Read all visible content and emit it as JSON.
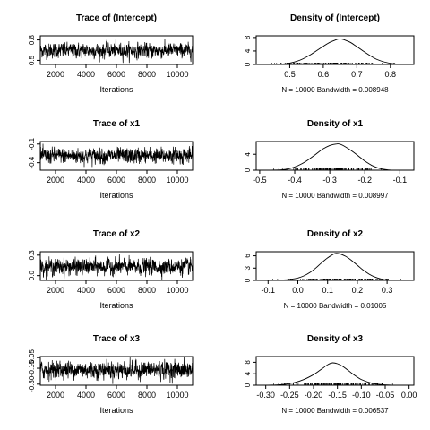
{
  "figure": {
    "rows": [
      {
        "trace": {
          "title": "Trace of (Intercept)",
          "xlabel": "Iterations",
          "xlim": [
            1000,
            11000
          ],
          "ylim": [
            0.44,
            0.86
          ],
          "xticks": [
            2000,
            4000,
            6000,
            8000,
            10000
          ],
          "yticks": [
            "0.5",
            "0.8"
          ],
          "ytick_values": [
            0.5,
            0.8
          ]
        },
        "density": {
          "title": "Density of (Intercept)",
          "caption": "N = 10000   Bandwidth = 0.008948",
          "xlim": [
            0.4,
            0.87
          ],
          "ylim": [
            0,
            8.5
          ],
          "xticks": [
            "0.5",
            "0.6",
            "0.7",
            "0.8"
          ],
          "xtick_values": [
            0.5,
            0.6,
            0.7,
            0.8
          ],
          "yticks": [
            "0",
            "4",
            "8"
          ],
          "ytick_values": [
            0,
            4,
            8
          ]
        }
      },
      {
        "trace": {
          "title": "Trace of x1",
          "xlabel": "Iterations",
          "xlim": [
            1000,
            11000
          ],
          "ylim": [
            -0.52,
            -0.06
          ],
          "xticks": [
            2000,
            4000,
            6000,
            8000,
            10000
          ],
          "yticks": [
            "-0.4",
            "-0.1"
          ],
          "ytick_values": [
            -0.4,
            -0.1
          ]
        },
        "density": {
          "title": "Density of x1",
          "caption": "N = 10000   Bandwidth = 0.008997",
          "xlim": [
            -0.51,
            -0.06
          ],
          "ylim": [
            0,
            7.2
          ],
          "xticks": [
            "-0.5",
            "-0.4",
            "-0.3",
            "-0.2",
            "-0.1"
          ],
          "xtick_values": [
            -0.5,
            -0.4,
            -0.3,
            -0.2,
            -0.1
          ],
          "yticks": [
            "0",
            "4"
          ],
          "ytick_values": [
            0,
            4
          ]
        }
      },
      {
        "trace": {
          "title": "Trace of x2",
          "xlabel": "Iterations",
          "xlim": [
            1000,
            11000
          ],
          "ylim": [
            -0.07,
            0.35
          ],
          "xticks": [
            2000,
            4000,
            6000,
            8000,
            10000
          ],
          "yticks": [
            "0.0",
            "0.3"
          ],
          "ytick_values": [
            0.0,
            0.3
          ]
        },
        "density": {
          "title": "Density of x2",
          "caption": "N = 10000   Bandwidth = 0.01005",
          "xlim": [
            -0.14,
            0.39
          ],
          "ylim": [
            0,
            7.0
          ],
          "xticks": [
            "-0.1",
            "0.0",
            "0.1",
            "0.2",
            "0.3"
          ],
          "xtick_values": [
            -0.1,
            0.0,
            0.1,
            0.2,
            0.3
          ],
          "yticks": [
            "0",
            "3",
            "6"
          ],
          "ytick_values": [
            0,
            3,
            6
          ]
        }
      },
      {
        "trace": {
          "title": "Trace of x3",
          "xlabel": "Iterations",
          "xlim": [
            1000,
            11000
          ],
          "ylim": [
            -0.31,
            -0.04
          ],
          "xticks": [
            2000,
            4000,
            6000,
            8000,
            10000
          ],
          "yticks": [
            "-0.30",
            "-0.15",
            "-0.05"
          ],
          "ytick_values": [
            -0.3,
            -0.15,
            -0.05
          ]
        },
        "density": {
          "title": "Density of x3",
          "caption": "N = 10000   Bandwidth = 0.006537",
          "xlim": [
            -0.32,
            0.01
          ],
          "ylim": [
            0,
            10
          ],
          "xticks": [
            "-0.30",
            "-0.25",
            "-0.20",
            "-0.15",
            "-0.10",
            "-0.05",
            "0.00"
          ],
          "xtick_values": [
            -0.3,
            -0.25,
            -0.2,
            -0.15,
            -0.1,
            -0.05,
            0.0
          ],
          "yticks": [
            "0",
            "4",
            "8"
          ],
          "ytick_values": [
            0,
            4,
            8
          ]
        }
      }
    ]
  },
  "chart_data": [
    {
      "type": "line",
      "title": "Trace of (Intercept)",
      "xlabel": "Iterations",
      "ylabel": "",
      "x_range": [
        1001,
        11000
      ],
      "xlim": [
        1000,
        11000
      ],
      "ylim": [
        0.44,
        0.86
      ],
      "summary": {
        "center": 0.645,
        "spread": 0.052
      }
    },
    {
      "type": "line",
      "title": "Density of (Intercept)",
      "xlabel": "N = 10000   Bandwidth = 0.008948",
      "ylabel": "",
      "x": [
        0.42,
        0.45,
        0.48,
        0.5,
        0.52,
        0.54,
        0.56,
        0.58,
        0.6,
        0.62,
        0.64,
        0.65,
        0.66,
        0.68,
        0.7,
        0.72,
        0.74,
        0.76,
        0.78,
        0.8,
        0.82,
        0.84
      ],
      "y": [
        0.0,
        0.05,
        0.15,
        0.4,
        0.9,
        1.7,
        2.8,
        4.1,
        5.4,
        6.6,
        7.4,
        7.6,
        7.4,
        6.6,
        5.3,
        3.9,
        2.6,
        1.5,
        0.8,
        0.35,
        0.1,
        0.0
      ],
      "xlim": [
        0.4,
        0.87
      ],
      "ylim": [
        0,
        8.5
      ]
    },
    {
      "type": "line",
      "title": "Trace of x1",
      "xlabel": "Iterations",
      "ylabel": "",
      "x_range": [
        1001,
        11000
      ],
      "xlim": [
        1000,
        11000
      ],
      "ylim": [
        -0.52,
        -0.06
      ],
      "summary": {
        "center": -0.29,
        "spread": 0.06
      }
    },
    {
      "type": "line",
      "title": "Density of x1",
      "xlabel": "N = 10000   Bandwidth = 0.008997",
      "ylabel": "",
      "x": [
        -0.47,
        -0.44,
        -0.42,
        -0.4,
        -0.38,
        -0.36,
        -0.34,
        -0.32,
        -0.3,
        -0.28,
        -0.27,
        -0.26,
        -0.24,
        -0.22,
        -0.2,
        -0.18,
        -0.16,
        -0.14,
        -0.12
      ],
      "y": [
        0.0,
        0.1,
        0.3,
        0.8,
        1.6,
        2.7,
        4.0,
        5.3,
        6.2,
        6.6,
        6.5,
        6.1,
        5.0,
        3.7,
        2.3,
        1.2,
        0.5,
        0.15,
        0.0
      ],
      "xlim": [
        -0.51,
        -0.06
      ],
      "ylim": [
        0,
        7.2
      ]
    },
    {
      "type": "line",
      "title": "Trace of x2",
      "xlabel": "Iterations",
      "ylabel": "",
      "x_range": [
        1001,
        11000
      ],
      "xlim": [
        1000,
        11000
      ],
      "ylim": [
        -0.07,
        0.35
      ],
      "summary": {
        "center": 0.13,
        "spread": 0.057
      }
    },
    {
      "type": "line",
      "title": "Density of x2",
      "xlabel": "N = 10000   Bandwidth = 0.01005",
      "ylabel": "",
      "x": [
        -0.1,
        -0.07,
        -0.04,
        -0.02,
        0.0,
        0.02,
        0.04,
        0.06,
        0.08,
        0.1,
        0.12,
        0.13,
        0.14,
        0.16,
        0.18,
        0.2,
        0.22,
        0.24,
        0.26,
        0.28,
        0.3,
        0.33,
        0.36
      ],
      "y": [
        0.0,
        0.05,
        0.15,
        0.3,
        0.6,
        1.1,
        1.9,
        3.0,
        4.3,
        5.5,
        6.4,
        6.6,
        6.5,
        5.9,
        4.9,
        3.7,
        2.5,
        1.5,
        0.8,
        0.35,
        0.12,
        0.03,
        0.0
      ],
      "xlim": [
        -0.14,
        0.39
      ],
      "ylim": [
        0,
        7.0
      ]
    },
    {
      "type": "line",
      "title": "Trace of x3",
      "xlabel": "Iterations",
      "ylabel": "",
      "x_range": [
        1001,
        11000
      ],
      "xlim": [
        1000,
        11000
      ],
      "ylim": [
        -0.31,
        -0.04
      ],
      "summary": {
        "center": -0.165,
        "spread": 0.04
      }
    },
    {
      "type": "line",
      "title": "Density of x3",
      "xlabel": "N = 10000   Bandwidth = 0.006537",
      "ylabel": "",
      "x": [
        -0.3,
        -0.28,
        -0.26,
        -0.24,
        -0.22,
        -0.2,
        -0.19,
        -0.18,
        -0.17,
        -0.16,
        -0.15,
        -0.14,
        -0.13,
        -0.12,
        -0.11,
        -0.1,
        -0.08,
        -0.06,
        -0.04,
        -0.02
      ],
      "y": [
        0.0,
        0.1,
        0.3,
        0.9,
        2.0,
        3.7,
        4.8,
        6.0,
        7.2,
        7.8,
        7.5,
        6.7,
        5.5,
        4.2,
        3.0,
        2.0,
        0.8,
        0.25,
        0.05,
        0.0
      ],
      "xlim": [
        -0.32,
        0.01
      ],
      "ylim": [
        0,
        10
      ]
    }
  ]
}
